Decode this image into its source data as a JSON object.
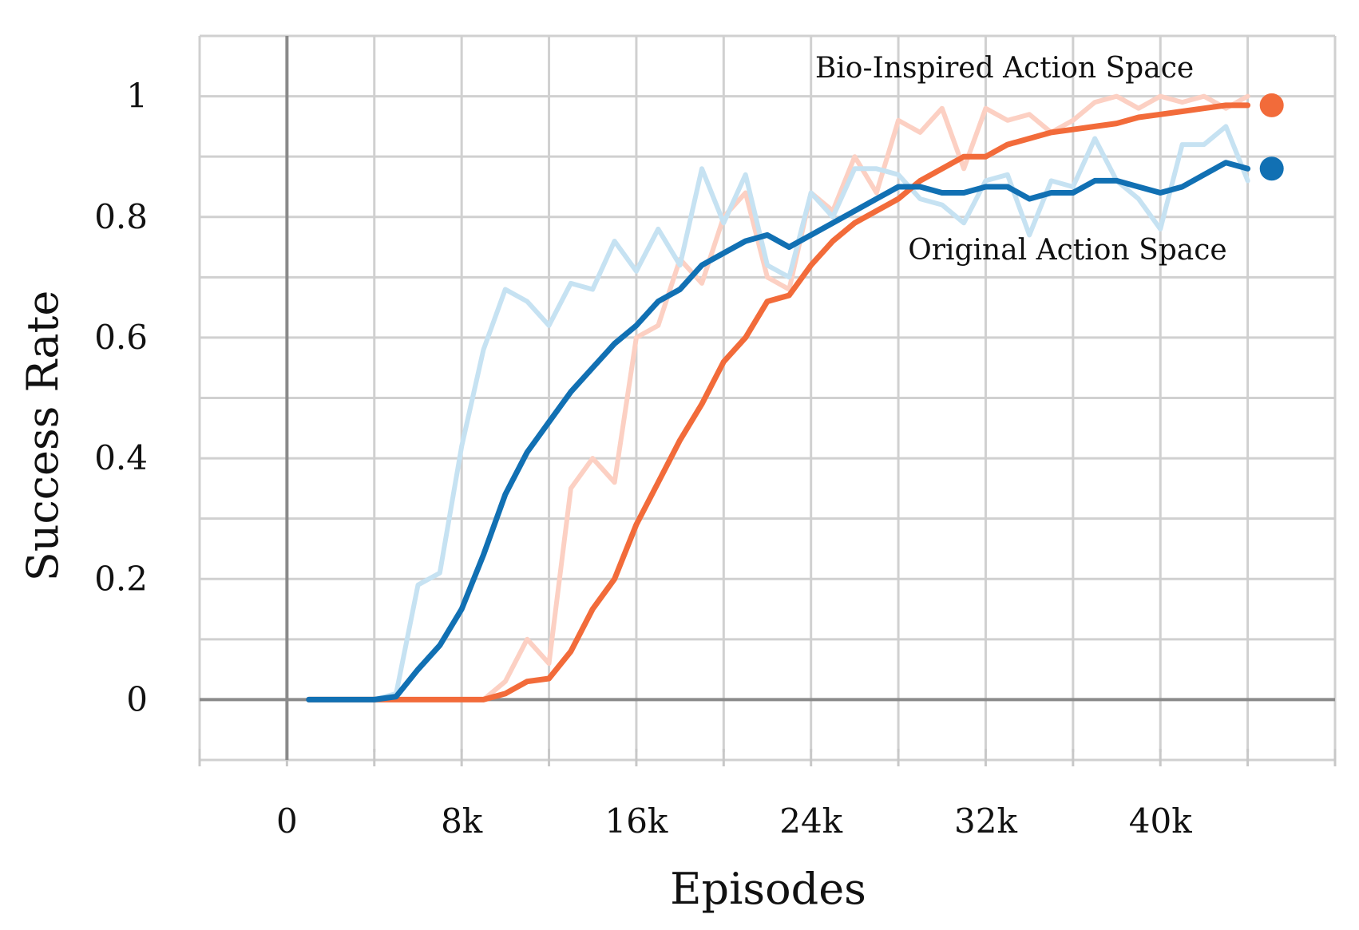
{
  "chart_data": {
    "type": "line",
    "title": "",
    "xlabel": "Episodes",
    "ylabel": "Success Rate",
    "xlim": [
      -4000,
      48000
    ],
    "ylim": [
      -0.1,
      1.1
    ],
    "grid": true,
    "x_ticks": [
      0,
      8000,
      16000,
      24000,
      32000,
      40000
    ],
    "x_tick_labels": [
      "0",
      "8k",
      "16k",
      "24k",
      "32k",
      "40k"
    ],
    "y_ticks": [
      0,
      0.2,
      0.4,
      0.6,
      0.8,
      1.0
    ],
    "y_tick_labels": [
      "0",
      "0.2",
      "0.4",
      "0.6",
      "0.8",
      "1"
    ],
    "annotations": [
      {
        "text": "Bio-Inspired Action Space",
        "series": "bio"
      },
      {
        "text": "Original Action Space",
        "series": "orig"
      }
    ],
    "series": [
      {
        "id": "bio",
        "name": "Bio-Inspired Action Space",
        "color": "#f26b3a",
        "raw_color": "#fcd0c3",
        "x": [
          1000,
          2000,
          3000,
          4000,
          5000,
          6000,
          7000,
          8000,
          9000,
          10000,
          11000,
          12000,
          13000,
          14000,
          15000,
          16000,
          17000,
          18000,
          19000,
          20000,
          21000,
          22000,
          23000,
          24000,
          25000,
          26000,
          27000,
          28000,
          29000,
          30000,
          31000,
          32000,
          33000,
          34000,
          35000,
          36000,
          37000,
          38000,
          39000,
          40000,
          41000,
          42000,
          43000,
          44000
        ],
        "smoothed": [
          0,
          0,
          0,
          0,
          0,
          0,
          0,
          0,
          0,
          0.01,
          0.03,
          0.035,
          0.08,
          0.15,
          0.2,
          0.29,
          0.36,
          0.43,
          0.49,
          0.56,
          0.6,
          0.66,
          0.67,
          0.72,
          0.76,
          0.79,
          0.81,
          0.83,
          0.86,
          0.88,
          0.9,
          0.9,
          0.92,
          0.93,
          0.94,
          0.945,
          0.95,
          0.955,
          0.965,
          0.97,
          0.975,
          0.98,
          0.985,
          0.985
        ],
        "raw": [
          0,
          0,
          0,
          0,
          0,
          0,
          0,
          0,
          0,
          0.03,
          0.1,
          0.06,
          0.35,
          0.4,
          0.36,
          0.6,
          0.62,
          0.73,
          0.69,
          0.8,
          0.84,
          0.7,
          0.68,
          0.84,
          0.81,
          0.9,
          0.84,
          0.96,
          0.94,
          0.98,
          0.88,
          0.98,
          0.96,
          0.97,
          0.94,
          0.96,
          0.99,
          1.0,
          0.98,
          1.0,
          0.99,
          1.0,
          0.98,
          1.0
        ]
      },
      {
        "id": "orig",
        "name": "Original Action Space",
        "color": "#1170b3",
        "raw_color": "#c6e2f2",
        "x": [
          1000,
          2000,
          3000,
          4000,
          5000,
          6000,
          7000,
          8000,
          9000,
          10000,
          11000,
          12000,
          13000,
          14000,
          15000,
          16000,
          17000,
          18000,
          19000,
          20000,
          21000,
          22000,
          23000,
          24000,
          25000,
          26000,
          27000,
          28000,
          29000,
          30000,
          31000,
          32000,
          33000,
          34000,
          35000,
          36000,
          37000,
          38000,
          39000,
          40000,
          41000,
          42000,
          43000,
          44000
        ],
        "smoothed": [
          0,
          0,
          0,
          0,
          0.005,
          0.05,
          0.09,
          0.15,
          0.24,
          0.34,
          0.41,
          0.46,
          0.51,
          0.55,
          0.59,
          0.62,
          0.66,
          0.68,
          0.72,
          0.74,
          0.76,
          0.77,
          0.75,
          0.77,
          0.79,
          0.81,
          0.83,
          0.85,
          0.85,
          0.84,
          0.84,
          0.85,
          0.85,
          0.83,
          0.84,
          0.84,
          0.86,
          0.86,
          0.85,
          0.84,
          0.85,
          0.87,
          0.89,
          0.88
        ],
        "raw": [
          0,
          0,
          0,
          0,
          0.01,
          0.19,
          0.21,
          0.42,
          0.58,
          0.68,
          0.66,
          0.62,
          0.69,
          0.68,
          0.76,
          0.71,
          0.78,
          0.72,
          0.88,
          0.79,
          0.87,
          0.72,
          0.7,
          0.84,
          0.8,
          0.88,
          0.88,
          0.87,
          0.83,
          0.82,
          0.79,
          0.86,
          0.87,
          0.77,
          0.86,
          0.85,
          0.93,
          0.86,
          0.83,
          0.78,
          0.92,
          0.92,
          0.95,
          0.86
        ]
      }
    ]
  }
}
